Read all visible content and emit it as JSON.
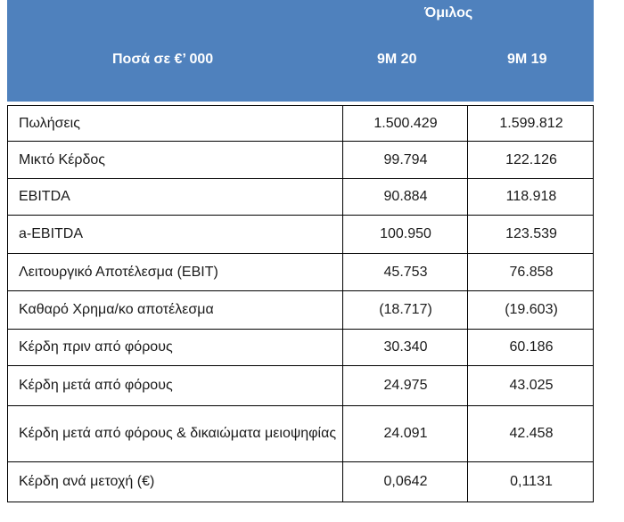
{
  "header": {
    "group_label": "Όμιλος",
    "column_label": "Ποσά  σε €’ 000",
    "periods": [
      "9M 20",
      "9M 19"
    ]
  },
  "rows": [
    {
      "label": "Πωλήσεις",
      "v2020": "1.500.429",
      "v2019": "1.599.812"
    },
    {
      "label": "Μικτό Κέρδος",
      "v2020": "99.794",
      "v2019": "122.126"
    },
    {
      "label": "EBITDA",
      "v2020": "90.884",
      "v2019": "118.918"
    },
    {
      "label": "a-EBITDA",
      "v2020": "100.950",
      "v2019": "123.539"
    },
    {
      "label": "Λειτουργικό Αποτέλεσμα (EBIT)",
      "v2020": "45.753",
      "v2019": "76.858"
    },
    {
      "label": "Καθαρό Χρημα/κο αποτέλεσμα",
      "v2020": "(18.717)",
      "v2019": "(19.603)"
    },
    {
      "label": "Κέρδη πριν από φόρους",
      "v2020": "30.340",
      "v2019": "60.186"
    },
    {
      "label": "Κέρδη μετά από φόρους",
      "v2020": "24.975",
      "v2019": "43.025"
    },
    {
      "label": "Κέρδη μετά από φόρους & δικαιώματα μειοψηφίας",
      "v2020": "24.091",
      "v2019": "42.458"
    },
    {
      "label": "Κέρδη ανά μετοχή (€)",
      "v2020": "0,0642",
      "v2019": "0,1131"
    }
  ]
}
